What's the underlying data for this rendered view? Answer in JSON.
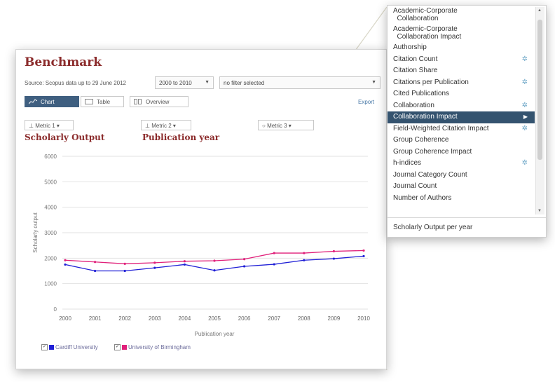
{
  "panel": {
    "title": "Benchmark",
    "source": "Source: Scopus data up to 29 June 2012",
    "period": "2000 to 2010",
    "filter": "no filter selected",
    "tabs": {
      "chart": "Chart",
      "table": "Table",
      "overview": "Overview"
    },
    "export": "Export",
    "metrics": {
      "metric1": "Metric 1",
      "metric2": "Metric 2",
      "metric3": "Metric 3"
    },
    "metric_labels": {
      "metric1": "Scholarly Output",
      "metric2": "Publication year"
    }
  },
  "chart_data": {
    "type": "line",
    "x": [
      "2000",
      "2001",
      "2002",
      "2003",
      "2004",
      "2005",
      "2006",
      "2007",
      "2008",
      "2009",
      "2010"
    ],
    "ylabel": "Scholarly output",
    "xlabel": "Publication year",
    "yticks": [
      "0",
      "1000",
      "2000",
      "3000",
      "4000",
      "5000",
      "6000"
    ],
    "ylim": [
      0,
      6000
    ],
    "grid": true,
    "legend_position": "bottom-left",
    "series": [
      {
        "name": "Cardiff University",
        "color": "#1f1fd6",
        "values": [
          1750,
          1500,
          1500,
          1620,
          1750,
          1520,
          1680,
          1760,
          1920,
          1980,
          2080
        ]
      },
      {
        "name": "University of Birmingham",
        "color": "#e0207a",
        "values": [
          1920,
          1850,
          1780,
          1820,
          1880,
          1900,
          1960,
          2200,
          2200,
          2270,
          2300
        ]
      }
    ]
  },
  "dropdown": {
    "items": [
      {
        "label": "Academic-Corporate\n  Collaboration",
        "gear": false
      },
      {
        "label": "Academic-Corporate\n  Collaboration Impact",
        "gear": false
      },
      {
        "label": "Authorship",
        "gear": false
      },
      {
        "label": "Citation Count",
        "gear": true
      },
      {
        "label": "Citation Share",
        "gear": false
      },
      {
        "label": "Citations per Publication",
        "gear": true
      },
      {
        "label": "Cited Publications",
        "gear": false
      },
      {
        "label": "Collaboration",
        "gear": true
      },
      {
        "label": "Collaboration Impact",
        "gear": false,
        "selected": true
      },
      {
        "label": "Field-Weighted Citation Impact",
        "gear": true
      },
      {
        "label": "Group Coherence",
        "gear": false
      },
      {
        "label": "Group Coherence Impact",
        "gear": false
      },
      {
        "label": "h-indices",
        "gear": true
      },
      {
        "label": "Journal Category Count",
        "gear": false
      },
      {
        "label": "Journal Count",
        "gear": false
      },
      {
        "label": "Number of Authors",
        "gear": false
      }
    ],
    "footer": "Scholarly Output per year"
  }
}
